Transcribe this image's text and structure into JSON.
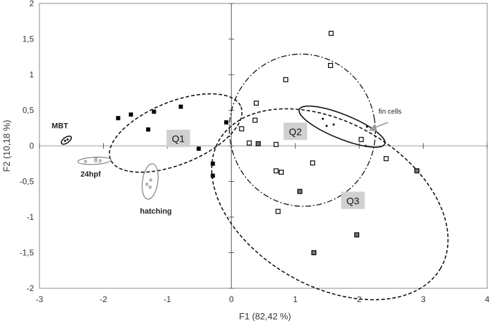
{
  "chart_data": {
    "type": "scatter",
    "xlabel": "F1 (82,42 %)",
    "ylabel": "F2  (10,18 %)",
    "xlim": [
      -3,
      4
    ],
    "ylim": [
      -2,
      2
    ],
    "xticks": [
      -3,
      -2,
      -1,
      0,
      1,
      2,
      3,
      4
    ],
    "xtick_labels": [
      "-3",
      "-2",
      "-1",
      "0",
      "1",
      "2",
      "3",
      "4"
    ],
    "yticks": [
      -2,
      -1.5,
      -1,
      -0.5,
      0,
      0.5,
      1,
      1.5,
      2
    ],
    "ytick_labels": [
      "-2",
      "-1,5",
      "-1",
      "-0,5",
      "0",
      "0,5",
      "1",
      "1,5",
      "2"
    ],
    "grid": false,
    "groups": [
      {
        "marker": "filled-square",
        "color": "#000000",
        "points": [
          [
            -1.77,
            0.39
          ],
          [
            -1.57,
            0.44
          ],
          [
            -1.21,
            0.48
          ],
          [
            -1.3,
            0.23
          ],
          [
            -0.79,
            0.55
          ],
          [
            -0.51,
            -0.04
          ],
          [
            -0.29,
            -0.25
          ],
          [
            -0.29,
            -0.42
          ],
          [
            -0.08,
            0.33
          ]
        ]
      },
      {
        "marker": "open-square",
        "color": "#000000",
        "points": [
          [
            1.56,
            1.58
          ],
          [
            1.55,
            1.13
          ],
          [
            0.85,
            0.93
          ],
          [
            0.39,
            0.6
          ],
          [
            0.37,
            0.36
          ],
          [
            0.16,
            0.24
          ],
          [
            0.28,
            0.04
          ],
          [
            0.7,
            0.02
          ],
          [
            2.03,
            0.09
          ],
          [
            1.27,
            -0.24
          ],
          [
            0.7,
            -0.35
          ],
          [
            0.78,
            -0.37
          ],
          [
            0.73,
            -0.92
          ],
          [
            2.42,
            -0.18
          ]
        ]
      },
      {
        "marker": "gray-square",
        "color": "#555555",
        "points": [
          [
            0.42,
            0.03
          ],
          [
            1.07,
            -0.64
          ],
          [
            2.9,
            -0.35
          ],
          [
            1.96,
            -1.25
          ],
          [
            1.29,
            -1.5
          ]
        ]
      },
      {
        "marker": "dot",
        "color": "#000000",
        "points": [
          [
            1.43,
            0.38
          ],
          [
            1.49,
            0.28
          ],
          [
            1.6,
            0.3
          ],
          [
            2.1,
            0.0
          ],
          [
            2.12,
            0.27
          ],
          [
            -2.6,
            0.07
          ],
          [
            -2.56,
            0.09
          ]
        ]
      },
      {
        "marker": "open-circle",
        "color": "#777777",
        "points": [
          [
            -2.28,
            -0.22
          ],
          [
            -2.12,
            -0.18
          ],
          [
            -2.12,
            -0.21
          ],
          [
            -2.05,
            -0.21
          ],
          [
            -1.26,
            -0.48
          ],
          [
            -1.32,
            -0.54
          ],
          [
            -1.27,
            -0.58
          ]
        ]
      }
    ],
    "ellipses": [
      {
        "label": "Q1",
        "center": [
          -0.87,
          0.18
        ],
        "rx": 1.1,
        "ry": 0.44,
        "angle": -22,
        "style": "dashed"
      },
      {
        "label": "Q2",
        "center": [
          1.11,
          0.22
        ],
        "rx": 1.14,
        "ry": 1.07,
        "angle": -10,
        "style": "dash-dot"
      },
      {
        "label": "Q3",
        "center": [
          1.54,
          -0.82
        ],
        "rx": 2.0,
        "ry": 1.15,
        "angle": 30,
        "style": "dashed"
      },
      {
        "label": "fin cells",
        "center": [
          1.73,
          0.27
        ],
        "rx": 0.72,
        "ry": 0.17,
        "angle": 22,
        "style": "solid"
      },
      {
        "label": "MBT",
        "center": [
          -2.58,
          0.08
        ],
        "rx": 0.09,
        "ry": 0.04,
        "angle": -35,
        "style": "solid"
      },
      {
        "label": "24hpf",
        "center": [
          -2.14,
          -0.21
        ],
        "rx": 0.26,
        "ry": 0.05,
        "angle": -3,
        "style": "gray"
      },
      {
        "label": "hatching",
        "center": [
          -1.27,
          -0.5
        ],
        "rx": 0.12,
        "ry": 0.25,
        "angle": 8,
        "style": "gray"
      }
    ],
    "annotations": [
      {
        "text": "Q1",
        "at": [
          -0.83,
          0.1
        ],
        "boxed": true
      },
      {
        "text": "Q2",
        "at": [
          1.0,
          0.2
        ],
        "boxed": true
      },
      {
        "text": "Q3",
        "at": [
          1.9,
          -0.77
        ],
        "boxed": true
      },
      {
        "text": "MBT",
        "at": [
          -2.68,
          0.25
        ],
        "boxed": false
      },
      {
        "text": "24hpf",
        "at": [
          -2.2,
          -0.43
        ],
        "boxed": false
      },
      {
        "text": "hatching",
        "at": [
          -1.18,
          -0.95
        ],
        "boxed": false
      },
      {
        "text": "fin cells",
        "at": [
          2.48,
          0.45
        ],
        "boxed": false
      }
    ]
  }
}
